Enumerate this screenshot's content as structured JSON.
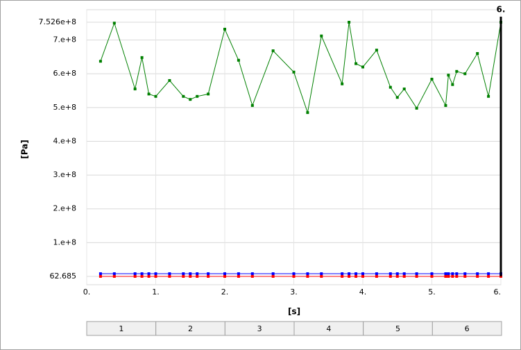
{
  "chart_data": {
    "type": "line",
    "y_label": "[Pa]",
    "x_label": "[s]",
    "xlim": [
      0,
      6
    ],
    "ylim": [
      62.685,
      752600000
    ],
    "xticks": [
      {
        "value": 0,
        "label": "0."
      },
      {
        "value": 1,
        "label": "1."
      },
      {
        "value": 2,
        "label": "2."
      },
      {
        "value": 3,
        "label": "3."
      },
      {
        "value": 4,
        "label": "4."
      },
      {
        "value": 5,
        "label": "5."
      },
      {
        "value": 6,
        "label": "6."
      }
    ],
    "yticks": [
      62.685,
      {
        "value": 100000000,
        "label": "1.e+8"
      },
      {
        "value": 200000000,
        "label": "2.e+8"
      },
      {
        "value": 300000000,
        "label": "3.e+8"
      },
      {
        "value": 400000000,
        "label": "4.e+8"
      },
      {
        "value": 500000000,
        "label": "5.e+8"
      },
      {
        "value": 600000000,
        "label": "6.e+8"
      },
      {
        "value": 700000000,
        "label": "7.e+8"
      },
      {
        "value": 752600000,
        "label": "7.526e+8"
      }
    ],
    "grid": true,
    "marker": {
      "value": 6,
      "label": "6.",
      "color": "#000000"
    },
    "x": [
      0.2,
      0.4,
      0.7,
      0.8,
      0.9,
      1.0,
      1.2,
      1.4,
      1.5,
      1.6,
      1.76,
      2.0,
      2.2,
      2.4,
      2.7,
      3.0,
      3.2,
      3.4,
      3.7,
      3.8,
      3.9,
      4.0,
      4.2,
      4.4,
      4.5,
      4.6,
      4.78,
      5.0,
      5.2,
      5.24,
      5.3,
      5.36,
      5.48,
      5.66,
      5.82,
      6.0
    ],
    "series": [
      {
        "color": "#008000",
        "values": [
          637000000,
          750000000,
          555000000,
          648000000,
          540000000,
          533000000,
          580000000,
          533000000,
          524000000,
          533000000,
          540000000,
          732000000,
          640000000,
          506000000,
          668000000,
          605000000,
          485000000,
          712000000,
          570000000,
          752600000,
          630000000,
          620000000,
          670000000,
          560000000,
          530000000,
          555000000,
          498000000,
          584000000,
          506000000,
          596000000,
          568000000,
          607000000,
          600000000,
          660000000,
          533000000,
          752600000
        ]
      },
      {
        "color": "#0000ff",
        "values": [
          8000000,
          8000000,
          8000000,
          8000000,
          8000000,
          8000000,
          8000000,
          8000000,
          8000000,
          8000000,
          8000000,
          8000000,
          8000000,
          8000000,
          8000000,
          8000000,
          8000000,
          8000000,
          8000000,
          8000000,
          8000000,
          8000000,
          8000000,
          8000000,
          8000000,
          8000000,
          8000000,
          8000000,
          8000000,
          8000000,
          8000000,
          8000000,
          8000000,
          8000000,
          8000000,
          8000000
        ]
      },
      {
        "color": "#ff0000",
        "values": [
          62.685,
          62.685,
          62.685,
          62.685,
          62.685,
          62.685,
          62.685,
          62.685,
          62.685,
          62.685,
          62.685,
          62.685,
          62.685,
          62.685,
          62.685,
          62.685,
          62.685,
          62.685,
          62.685,
          62.685,
          62.685,
          62.685,
          62.685,
          62.685,
          62.685,
          62.685,
          62.685,
          62.685,
          62.685,
          62.685,
          62.685,
          62.685,
          62.685,
          62.685,
          62.685,
          62.685
        ]
      }
    ],
    "tabs": [
      "1",
      "2",
      "3",
      "4",
      "5",
      "6"
    ]
  }
}
